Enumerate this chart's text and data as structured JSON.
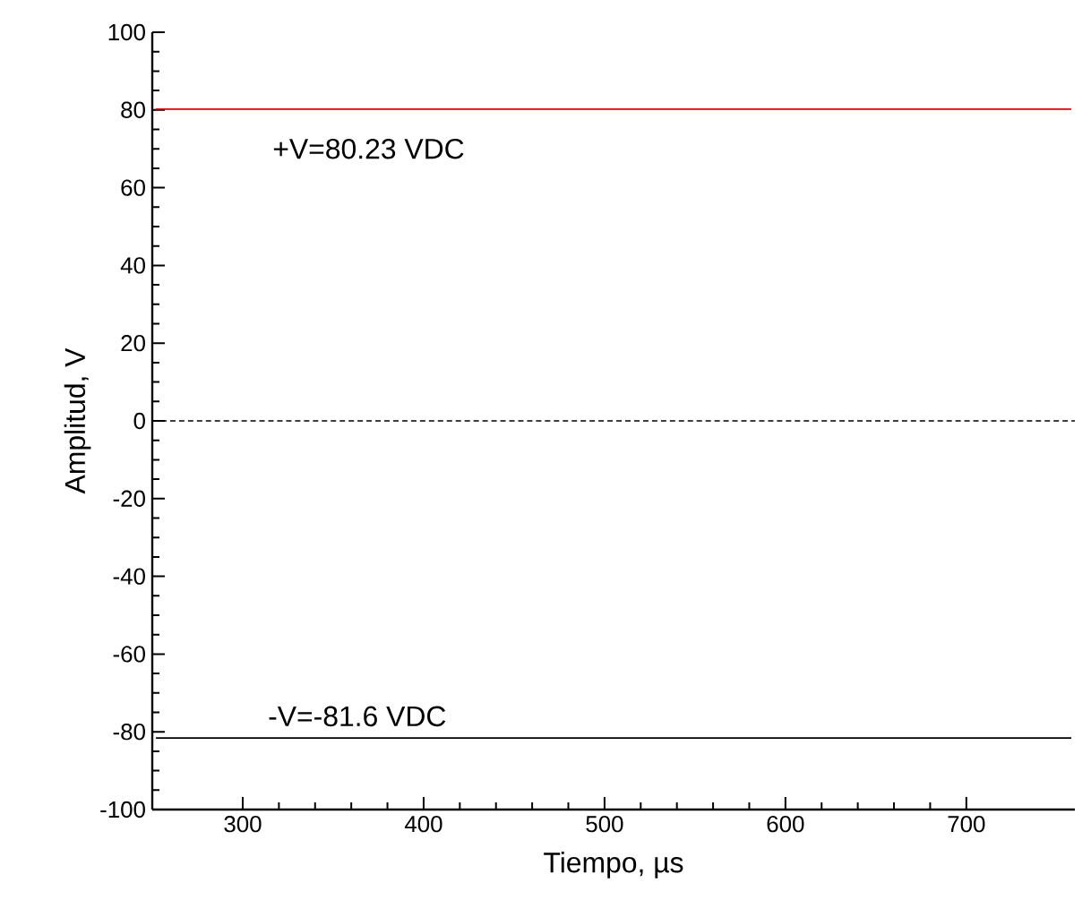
{
  "chart_data": {
    "type": "line",
    "xlabel": "Tiempo, µs",
    "ylabel": "Amplitud, V",
    "xlim": [
      250,
      760
    ],
    "ylim": [
      -100,
      100
    ],
    "xticks": [
      300,
      400,
      500,
      600,
      700
    ],
    "yticks": [
      -100,
      -80,
      -60,
      -40,
      -20,
      0,
      20,
      40,
      60,
      80,
      100
    ],
    "series": [
      {
        "color": "#e00000",
        "values": [
          80.23,
          80.23
        ]
      },
      {
        "color": "#000000",
        "values": [
          -81.6,
          -81.6
        ]
      }
    ],
    "ref_lines": [
      {
        "axis": "y",
        "value": 0,
        "color": "#000000",
        "line_style": "dashed"
      }
    ],
    "annotations": [
      "+V=80.23 VDC",
      "-V=-81.6 VDC"
    ],
    "x": [
      252,
      758
    ]
  }
}
